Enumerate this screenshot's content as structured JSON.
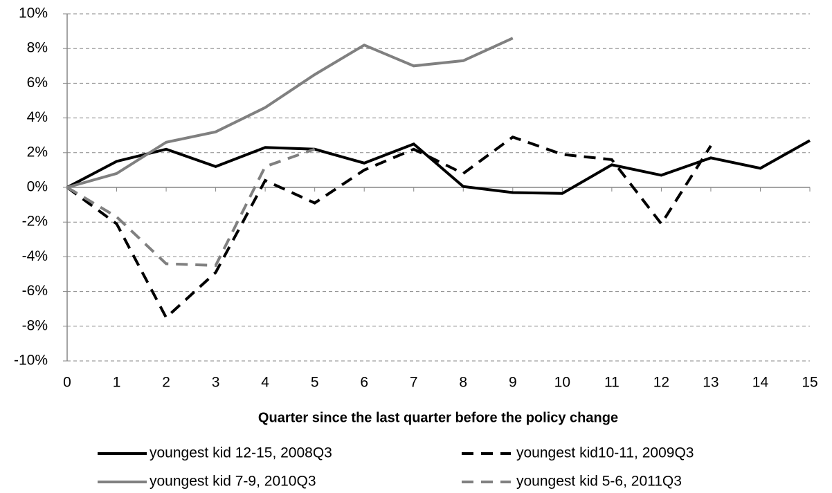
{
  "chart_data": {
    "type": "line",
    "xlabel": "Quarter since the last quarter before the policy change",
    "x": [
      0,
      1,
      2,
      3,
      4,
      5,
      6,
      7,
      8,
      9,
      10,
      11,
      12,
      13,
      14,
      15
    ],
    "series": [
      {
        "name": "youngest kid 12-15, 2008Q3",
        "color": "#000000",
        "dash": false,
        "values": [
          0,
          1.5,
          2.2,
          1.2,
          2.3,
          2.2,
          1.4,
          2.5,
          0.05,
          -0.3,
          -0.35,
          1.3,
          0.7,
          1.7,
          1.1,
          2.7
        ]
      },
      {
        "name": "youngest kid10-11, 2009Q3",
        "color": "#000000",
        "dash": true,
        "values": [
          0,
          -2.1,
          -7.5,
          -4.9,
          0.4,
          -0.9,
          1.0,
          2.2,
          0.8,
          2.9,
          1.9,
          1.6,
          -2.1,
          2.4,
          null,
          null
        ]
      },
      {
        "name": "youngest kid 7-9, 2010Q3",
        "color": "#808080",
        "dash": false,
        "values": [
          0,
          0.8,
          2.6,
          3.2,
          4.6,
          6.5,
          8.2,
          7.0,
          7.3,
          8.6,
          null,
          null,
          null,
          null,
          null,
          null
        ]
      },
      {
        "name": "youngest kid 5-6, 2011Q3",
        "color": "#808080",
        "dash": true,
        "values": [
          0,
          -1.7,
          -4.4,
          -4.5,
          1.2,
          2.2,
          null,
          null,
          null,
          null,
          null,
          null,
          null,
          null,
          null,
          null
        ]
      }
    ],
    "xlim": [
      0,
      15
    ],
    "xticks": [
      0,
      1,
      2,
      3,
      4,
      5,
      6,
      7,
      8,
      9,
      10,
      11,
      12,
      13,
      14,
      15
    ],
    "ylim": [
      -10,
      10
    ],
    "yticks": [
      {
        "value": -10,
        "label": "-10%"
      },
      {
        "value": -8,
        "label": "-8%"
      },
      {
        "value": -6,
        "label": "-6%"
      },
      {
        "value": -4,
        "label": "-4%"
      },
      {
        "value": -2,
        "label": "-2%"
      },
      {
        "value": 0,
        "label": "0%"
      },
      {
        "value": 2,
        "label": "2%"
      },
      {
        "value": 4,
        "label": "4%"
      },
      {
        "value": 6,
        "label": "6%"
      },
      {
        "value": 8,
        "label": "8%"
      },
      {
        "value": 10,
        "label": "10%"
      }
    ],
    "grid": true,
    "legend": "bottom"
  }
}
